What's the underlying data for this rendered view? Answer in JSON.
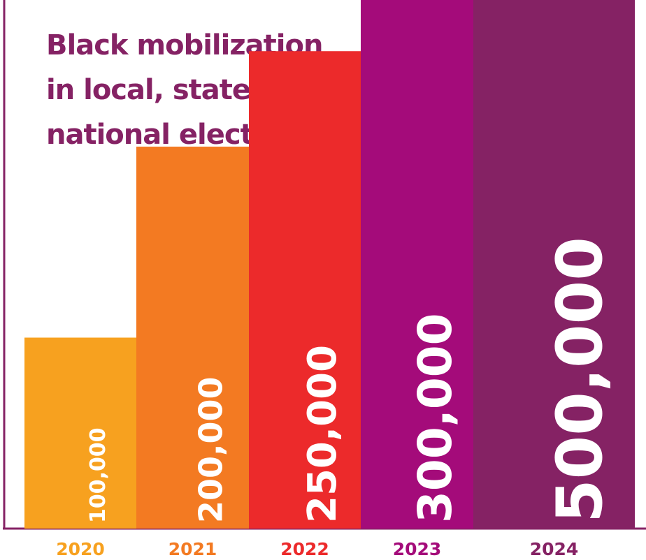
{
  "chart_data": {
    "type": "bar",
    "title_lines": [
      "Black mobilization",
      "in local, state, and",
      "national elections"
    ],
    "categories": [
      "2020",
      "2021",
      "2022",
      "2023",
      "2024"
    ],
    "values": [
      100000,
      200000,
      250000,
      300000,
      500000
    ],
    "value_labels": [
      "100,000",
      "200,000",
      "250,000",
      "300,000",
      "500,000"
    ],
    "xlabel": "",
    "ylabel": "",
    "grid": false,
    "legend": "none",
    "colors": {
      "bars": [
        "#F7A11F",
        "#F37A22",
        "#EC2A2B",
        "#A40B7A",
        "#852264"
      ],
      "labels": [
        "#F7A11F",
        "#F37A22",
        "#EC2A2B",
        "#A40B7A",
        "#852264"
      ],
      "title": "#852264",
      "axis": "#852264"
    }
  }
}
